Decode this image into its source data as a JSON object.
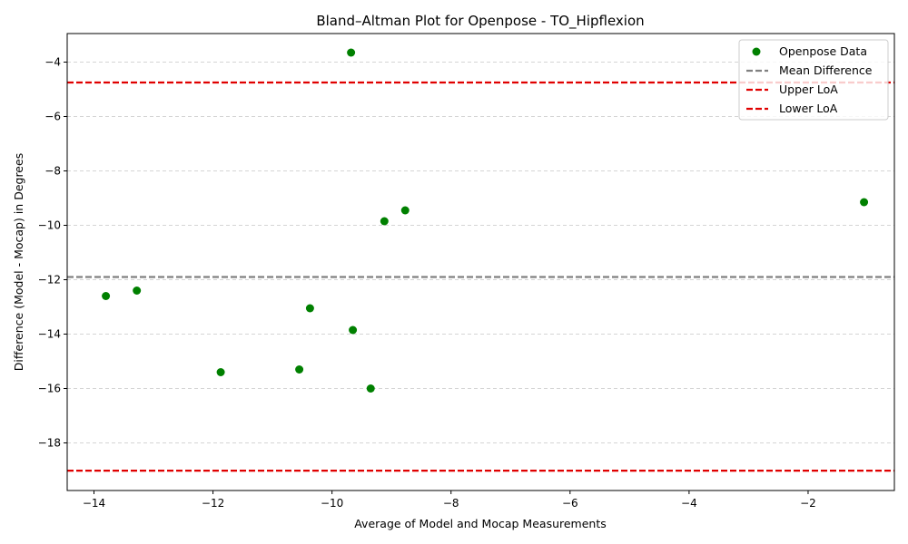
{
  "chart_data": {
    "type": "scatter",
    "title": "Bland–Altman Plot for Openpose - TO_Hipflexion",
    "xlabel": "Average of Model and Mocap Measurements",
    "ylabel": "Difference (Model - Mocap) in Degrees",
    "xlim": [
      -14.45,
      -0.55
    ],
    "ylim": [
      -19.75,
      -2.95
    ],
    "xticks": [
      -14,
      -12,
      -10,
      -8,
      -6,
      -4,
      -2
    ],
    "yticks": [
      -18,
      -16,
      -14,
      -12,
      -10,
      -8,
      -6,
      -4
    ],
    "grid": "horizontal dashed",
    "legend_position": "top-right",
    "series": [
      {
        "name": "Openpose Data",
        "color": "#008000",
        "points": [
          {
            "x": -13.8,
            "y": -12.6
          },
          {
            "x": -13.28,
            "y": -12.4
          },
          {
            "x": -11.87,
            "y": -15.4
          },
          {
            "x": -10.55,
            "y": -15.3
          },
          {
            "x": -10.37,
            "y": -13.05
          },
          {
            "x": -9.68,
            "y": -3.65
          },
          {
            "x": -9.65,
            "y": -13.85
          },
          {
            "x": -9.35,
            "y": -16.0
          },
          {
            "x": -9.12,
            "y": -9.85
          },
          {
            "x": -8.77,
            "y": -9.45
          },
          {
            "x": -1.06,
            "y": -9.15
          }
        ]
      }
    ],
    "reference_lines": [
      {
        "name": "Mean Difference",
        "y": -11.9,
        "color": "#808080"
      },
      {
        "name": "Upper LoA",
        "y": -4.75,
        "color": "#e00000"
      },
      {
        "name": "Lower LoA",
        "y": -19.02,
        "color": "#e00000"
      }
    ]
  }
}
